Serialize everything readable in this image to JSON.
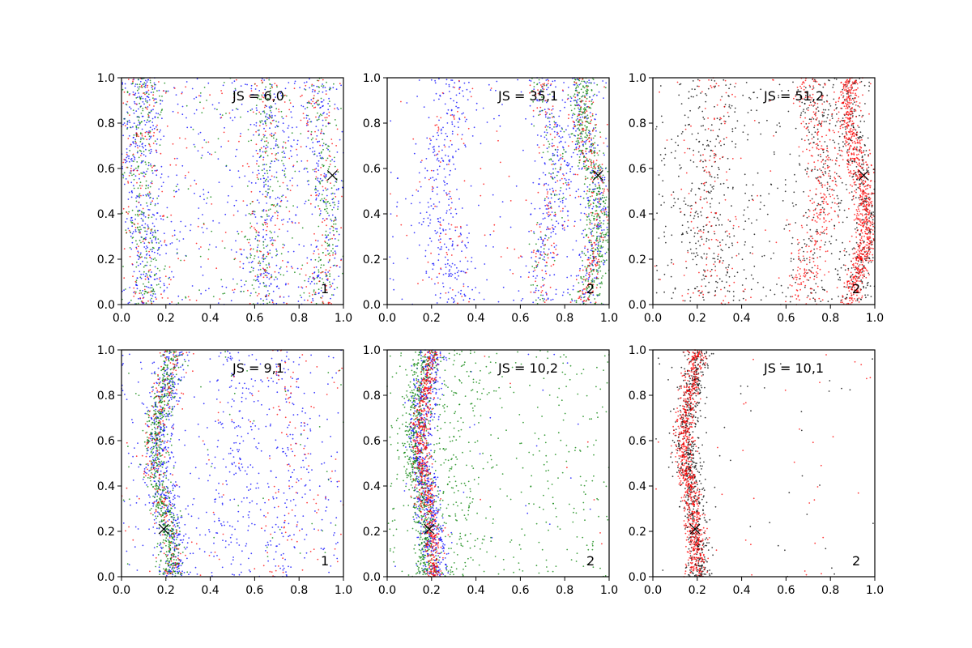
{
  "chart_data": [
    {
      "type": "scatter",
      "panel": [
        0,
        0
      ],
      "annotations": {
        "js": "JS = 6,0",
        "corner": "1"
      },
      "marker_x": {
        "x": 0.95,
        "y": 0.57
      },
      "xlim": [
        0,
        1
      ],
      "ylim": [
        0,
        1
      ],
      "xticks": [
        "0.0",
        "0.2",
        "0.4",
        "0.6",
        "0.8",
        "1.0"
      ],
      "yticks": [
        "0.0",
        "0.2",
        "0.4",
        "0.6",
        "0.8",
        "1.0"
      ],
      "series": [
        {
          "color": "#0000ff",
          "bands": [
            {
              "c": 0.1,
              "w": 0.05,
              "wave": 0.02,
              "n": 330
            },
            {
              "c": 0.65,
              "w": 0.05,
              "wave": 0.02,
              "n": 200
            },
            {
              "c": 0.9,
              "w": 0.04,
              "wave": 0.02,
              "n": 140
            },
            {
              "uniform": true,
              "n": 400
            }
          ]
        },
        {
          "color": "#008000",
          "bands": [
            {
              "c": 0.1,
              "w": 0.04,
              "wave": 0.02,
              "n": 240
            },
            {
              "c": 0.65,
              "w": 0.04,
              "wave": 0.02,
              "n": 180
            },
            {
              "c": 0.91,
              "w": 0.03,
              "wave": 0.02,
              "n": 160
            },
            {
              "uniform": true,
              "n": 150
            }
          ]
        },
        {
          "color": "#ff0000",
          "bands": [
            {
              "c": 0.1,
              "w": 0.05,
              "wave": 0.02,
              "n": 120
            },
            {
              "c": 0.66,
              "w": 0.05,
              "wave": 0.02,
              "n": 110
            },
            {
              "c": 0.9,
              "w": 0.04,
              "wave": 0.02,
              "n": 90
            },
            {
              "uniform": true,
              "n": 150
            }
          ]
        }
      ]
    },
    {
      "type": "scatter",
      "panel": [
        0,
        1
      ],
      "annotations": {
        "js": "JS = 35,1",
        "corner": "2"
      },
      "marker_x": {
        "x": 0.95,
        "y": 0.57
      },
      "xlim": [
        0,
        1
      ],
      "ylim": [
        0,
        1
      ],
      "xticks": [
        "0.0",
        "0.2",
        "0.4",
        "0.6",
        "0.8",
        "1.0"
      ],
      "yticks": [
        "0.0",
        "0.2",
        "0.4",
        "0.6",
        "0.8",
        "1.0"
      ],
      "series": [
        {
          "color": "#0000ff",
          "bands": [
            {
              "c": 0.27,
              "w": 0.05,
              "wave": 0.03,
              "n": 260
            },
            {
              "c": 0.73,
              "w": 0.04,
              "wave": 0.04,
              "n": 240
            },
            {
              "c": 0.91,
              "w": 0.04,
              "wave": 0.04,
              "n": 260
            },
            {
              "uniform": true,
              "n": 180
            }
          ]
        },
        {
          "color": "#008000",
          "bands": [
            {
              "c": 0.72,
              "w": 0.03,
              "wave": 0.04,
              "n": 100
            },
            {
              "c": 0.92,
              "w": 0.03,
              "wave": 0.04,
              "n": 520
            }
          ]
        },
        {
          "color": "#ff0000",
          "bands": [
            {
              "c": 0.28,
              "w": 0.05,
              "wave": 0.03,
              "n": 60
            },
            {
              "c": 0.73,
              "w": 0.04,
              "wave": 0.04,
              "n": 120
            },
            {
              "c": 0.92,
              "w": 0.03,
              "wave": 0.04,
              "n": 200
            },
            {
              "uniform": true,
              "n": 60
            }
          ]
        }
      ]
    },
    {
      "type": "scatter",
      "panel": [
        0,
        2
      ],
      "annotations": {
        "js": "JS = 51,2",
        "corner": "2"
      },
      "marker_x": {
        "x": 0.95,
        "y": 0.57
      },
      "xlim": [
        0,
        1
      ],
      "ylim": [
        0,
        1
      ],
      "xticks": [
        "0.0",
        "0.2",
        "0.4",
        "0.6",
        "0.8",
        "1.0"
      ],
      "yticks": [
        "0.0",
        "0.2",
        "0.4",
        "0.6",
        "0.8",
        "1.0"
      ],
      "series": [
        {
          "color": "#000000",
          "bands": [
            {
              "c": 0.25,
              "w": 0.08,
              "wave": 0.02,
              "n": 260
            },
            {
              "c": 0.74,
              "w": 0.05,
              "wave": 0.04,
              "n": 200
            },
            {
              "c": 0.92,
              "w": 0.04,
              "wave": 0.04,
              "n": 300
            },
            {
              "uniform": true,
              "n": 300
            }
          ]
        },
        {
          "color": "#ff0000",
          "bands": [
            {
              "c": 0.27,
              "w": 0.06,
              "wave": 0.02,
              "n": 120
            },
            {
              "c": 0.73,
              "w": 0.04,
              "wave": 0.04,
              "n": 330
            },
            {
              "c": 0.92,
              "w": 0.025,
              "wave": 0.04,
              "n": 820
            },
            {
              "uniform": true,
              "n": 80
            }
          ]
        }
      ]
    },
    {
      "type": "scatter",
      "panel": [
        1,
        0
      ],
      "annotations": {
        "js": "JS = 9,1",
        "corner": "1"
      },
      "marker_x": {
        "x": 0.19,
        "y": 0.21
      },
      "xlim": [
        0,
        1
      ],
      "ylim": [
        0,
        1
      ],
      "xticks": [
        "0.0",
        "0.2",
        "0.4",
        "0.6",
        "0.8",
        "1.0"
      ],
      "yticks": [
        "0.0",
        "0.2",
        "0.4",
        "0.6",
        "0.8",
        "1.0"
      ],
      "series": [
        {
          "color": "#0000ff",
          "bands": [
            {
              "c": 0.2,
              "w": 0.035,
              "wave": 0.04,
              "n": 500
            },
            {
              "c": 0.52,
              "w": 0.06,
              "wave": 0.03,
              "n": 140
            },
            {
              "c": 0.75,
              "w": 0.05,
              "wave": 0.03,
              "n": 110
            },
            {
              "uniform": true,
              "n": 320
            }
          ]
        },
        {
          "color": "#008000",
          "bands": [
            {
              "c": 0.19,
              "w": 0.025,
              "wave": 0.04,
              "n": 620
            },
            {
              "uniform": true,
              "n": 50
            }
          ]
        },
        {
          "color": "#ff0000",
          "bands": [
            {
              "c": 0.19,
              "w": 0.03,
              "wave": 0.04,
              "n": 200
            },
            {
              "c": 0.74,
              "w": 0.04,
              "wave": 0.03,
              "n": 60
            },
            {
              "uniform": true,
              "n": 90
            }
          ]
        }
      ]
    },
    {
      "type": "scatter",
      "panel": [
        1,
        1
      ],
      "annotations": {
        "js": "JS = 10,2",
        "corner": "2"
      },
      "marker_x": {
        "x": 0.19,
        "y": 0.21
      },
      "xlim": [
        0,
        1
      ],
      "ylim": [
        0,
        1
      ],
      "xticks": [
        "0.0",
        "0.2",
        "0.4",
        "0.6",
        "0.8",
        "1.0"
      ],
      "yticks": [
        "0.0",
        "0.2",
        "0.4",
        "0.6",
        "0.8",
        "1.0"
      ],
      "series": [
        {
          "color": "#0000ff",
          "bands": [
            {
              "c": 0.18,
              "w": 0.03,
              "wave": 0.03,
              "n": 720
            },
            {
              "uniform": true,
              "n": 30
            }
          ]
        },
        {
          "color": "#008000",
          "bands": [
            {
              "c": 0.15,
              "w": 0.03,
              "wave": 0.03,
              "n": 600
            },
            {
              "c": 0.3,
              "w": 0.07,
              "wave": 0.02,
              "n": 200
            },
            {
              "uniform": true,
              "n": 360
            }
          ]
        },
        {
          "color": "#ff0000",
          "bands": [
            {
              "c": 0.18,
              "w": 0.02,
              "wave": 0.03,
              "n": 620
            },
            {
              "uniform": true,
              "n": 10
            }
          ]
        }
      ]
    },
    {
      "type": "scatter",
      "panel": [
        1,
        2
      ],
      "annotations": {
        "js": "JS = 10,1",
        "corner": "2"
      },
      "marker_x": {
        "x": 0.19,
        "y": 0.21
      },
      "xlim": [
        0,
        1
      ],
      "ylim": [
        0,
        1
      ],
      "xticks": [
        "0.0",
        "0.2",
        "0.4",
        "0.6",
        "0.8",
        "1.0"
      ],
      "yticks": [
        "0.0",
        "0.2",
        "0.4",
        "0.6",
        "0.8",
        "1.0"
      ],
      "series": [
        {
          "color": "#000000",
          "bands": [
            {
              "c": 0.18,
              "w": 0.03,
              "wave": 0.03,
              "n": 700
            },
            {
              "uniform": true,
              "n": 40
            }
          ]
        },
        {
          "color": "#ff0000",
          "bands": [
            {
              "c": 0.17,
              "w": 0.022,
              "wave": 0.03,
              "n": 820
            },
            {
              "uniform": true,
              "n": 40
            }
          ]
        }
      ]
    }
  ]
}
